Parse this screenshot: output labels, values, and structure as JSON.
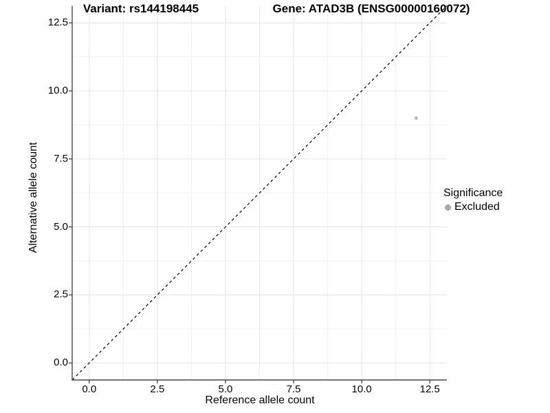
{
  "chart_data": {
    "type": "scatter",
    "title_left": "Variant: rs144198445",
    "title_right": "Gene: ATAD3B (ENSG00000160072)",
    "xlabel": "Reference allele count",
    "ylabel": "Alternative allele count",
    "xlim": [
      -0.625,
      13.125
    ],
    "ylim": [
      -0.625,
      13.125
    ],
    "x_ticks": [
      0,
      2.5,
      5,
      7.5,
      10,
      12.5
    ],
    "x_tick_labels": [
      "0.0",
      "2.5",
      "5.0",
      "7.5",
      "10.0",
      "12.5"
    ],
    "y_ticks": [
      0,
      2.5,
      5,
      7.5,
      10,
      12.5
    ],
    "y_tick_labels": [
      "0.0",
      "2.5",
      "5.0",
      "7.5",
      "10.0",
      "12.5"
    ],
    "minor_ticks_x": [
      1.25,
      3.75,
      6.25,
      8.75,
      11.25
    ],
    "minor_ticks_y": [
      1.25,
      3.75,
      6.25,
      8.75,
      11.25
    ],
    "grid": true,
    "legend_position": "right",
    "reference_line": {
      "kind": "abline",
      "slope": 1,
      "intercept": 0,
      "style": "dashed",
      "color": "#000000"
    },
    "series": [
      {
        "name": "Excluded",
        "color": "#bcbcbc",
        "points": [
          {
            "x": 12,
            "y": 9
          }
        ]
      }
    ],
    "legend": {
      "title": "Significance",
      "items": [
        {
          "label": "Excluded",
          "color": "#a9a9a9"
        }
      ]
    },
    "colors": {
      "background": "#ffffff",
      "grid_major": "#e4e4e4",
      "grid_minor": "#f0f0f0",
      "axis_line": "#474747",
      "tick": "#333333",
      "text": "#000000"
    }
  }
}
